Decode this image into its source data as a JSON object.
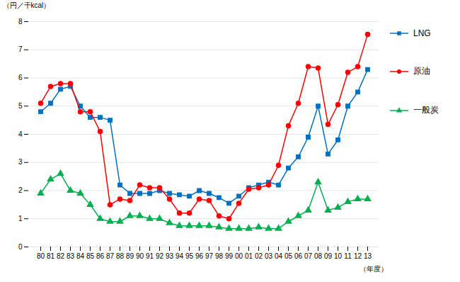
{
  "chart_data": {
    "type": "line",
    "ylabel": "（円／千kcal）",
    "xlabel": "（年度）",
    "categories": [
      "80",
      "81",
      "82",
      "83",
      "84",
      "85",
      "86",
      "87",
      "88",
      "89",
      "90",
      "91",
      "92",
      "93",
      "94",
      "95",
      "96",
      "97",
      "98",
      "99",
      "00",
      "01",
      "02",
      "03",
      "04",
      "05",
      "06",
      "07",
      "08",
      "09",
      "10",
      "11",
      "12",
      "13"
    ],
    "series": [
      {
        "name": "LNG",
        "color": "#0070C0",
        "marker": "square",
        "values": [
          4.8,
          5.1,
          5.6,
          5.7,
          5.0,
          4.6,
          4.6,
          4.5,
          2.2,
          1.9,
          1.9,
          1.9,
          2.0,
          1.9,
          1.85,
          1.8,
          2.0,
          1.9,
          1.75,
          1.55,
          1.8,
          2.1,
          2.2,
          2.3,
          2.2,
          2.8,
          3.2,
          3.9,
          5.0,
          3.3,
          3.8,
          5.0,
          5.5,
          6.3
        ]
      },
      {
        "name": "原油",
        "color": "#FF0000",
        "marker": "circle",
        "values": [
          5.1,
          5.7,
          5.8,
          5.8,
          4.8,
          4.8,
          4.1,
          1.5,
          1.7,
          1.65,
          2.2,
          2.1,
          2.1,
          1.7,
          1.2,
          1.2,
          1.7,
          1.65,
          1.1,
          1.0,
          1.55,
          2.05,
          2.1,
          2.2,
          2.9,
          4.3,
          5.1,
          6.4,
          6.35,
          4.35,
          5.05,
          6.2,
          6.4,
          7.55
        ]
      },
      {
        "name": "一般炭",
        "color": "#00B050",
        "marker": "triangle",
        "values": [
          1.9,
          2.4,
          2.6,
          2.0,
          1.9,
          1.5,
          1.0,
          0.9,
          0.9,
          1.1,
          1.1,
          1.0,
          1.0,
          0.85,
          0.75,
          0.75,
          0.75,
          0.75,
          0.7,
          0.65,
          0.65,
          0.65,
          0.7,
          0.65,
          0.65,
          0.9,
          1.1,
          1.3,
          2.3,
          1.3,
          1.4,
          1.6,
          1.7,
          1.7
        ]
      }
    ],
    "ylim": [
      0,
      8
    ],
    "yticks": [
      0,
      1,
      2,
      3,
      4,
      5,
      6,
      7,
      8
    ],
    "grid": true,
    "legend": "right"
  }
}
